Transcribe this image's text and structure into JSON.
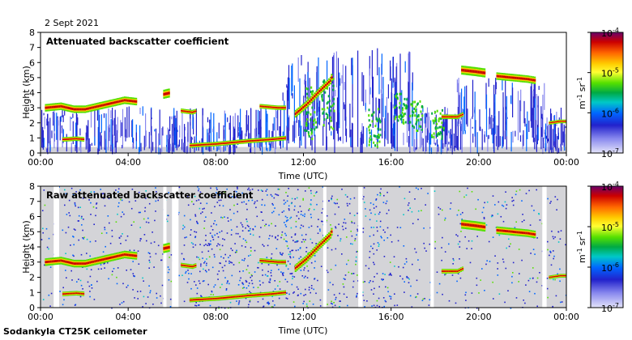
{
  "date": "2 Sept 2021",
  "footer": "Sodankyla CT25K ceilometer",
  "chart_data": [
    {
      "type": "heatmap",
      "title": "Attenuated backscatter coefficient",
      "xlabel": "Time (UTC)",
      "ylabel": "Height (km)",
      "xticks": [
        "00:00",
        "04:00",
        "08:00",
        "12:00",
        "16:00",
        "20:00",
        "00:00"
      ],
      "xlim_hours": [
        0,
        24
      ],
      "yticks": [
        "0",
        "1",
        "2",
        "3",
        "4",
        "5",
        "6",
        "7",
        "8"
      ],
      "ylim_km": [
        0,
        8
      ],
      "colorbar": {
        "scale": "log",
        "ticks": [
          {
            "base": "10",
            "exp": "-4"
          },
          {
            "base": "10",
            "exp": "-5"
          },
          {
            "base": "10",
            "exp": "-6"
          },
          {
            "base": "10",
            "exp": "-7"
          }
        ],
        "unit": {
          "m": "m",
          "m_exp": "-1",
          "sr": "sr",
          "sr_exp": "-1"
        },
        "colors": [
          "#6a006a",
          "#cc0000",
          "#ff6600",
          "#ffcc00",
          "#ffff33",
          "#55e000",
          "#00aa44",
          "#00c8c8",
          "#0066ff",
          "#2222cc",
          "#8888ee",
          "#d8d8f8"
        ]
      },
      "layers": [
        {
          "name": "cloud-top-lower",
          "points": [
            [
              0.2,
              3.0
            ],
            [
              0.9,
              3.1
            ],
            [
              1.5,
              2.9
            ],
            [
              2.0,
              2.9
            ],
            [
              2.6,
              3.1
            ],
            [
              3.2,
              3.3
            ],
            [
              3.8,
              3.5
            ],
            [
              4.4,
              3.4
            ]
          ],
          "thickness_km": 0.25,
          "value": "high"
        },
        {
          "name": "low-cloud-early",
          "points": [
            [
              1.0,
              0.9
            ],
            [
              1.6,
              0.95
            ],
            [
              2.0,
              0.9
            ]
          ],
          "thickness_km": 0.15,
          "value": "high"
        },
        {
          "name": "cloud-0530",
          "points": [
            [
              5.6,
              3.9
            ],
            [
              5.9,
              4.0
            ]
          ],
          "thickness_km": 0.3,
          "value": "high"
        },
        {
          "name": "cloud-0630",
          "points": [
            [
              6.4,
              2.8
            ],
            [
              6.9,
              2.7
            ],
            [
              7.1,
              2.8
            ]
          ],
          "thickness_km": 0.15,
          "value": "high"
        },
        {
          "name": "boundary-layer",
          "points": [
            [
              6.8,
              0.5
            ],
            [
              8.0,
              0.6
            ],
            [
              9.5,
              0.8
            ],
            [
              10.5,
              0.9
            ],
            [
              11.2,
              1.0
            ]
          ],
          "thickness_km": 0.15,
          "value": "high"
        },
        {
          "name": "cloud-1030",
          "points": [
            [
              10.0,
              3.1
            ],
            [
              10.8,
              3.0
            ],
            [
              11.2,
              3.0
            ]
          ],
          "thickness_km": 0.15,
          "value": "high"
        },
        {
          "name": "rising-cloud-12",
          "points": [
            [
              11.6,
              2.6
            ],
            [
              12.1,
              3.2
            ],
            [
              12.7,
              4.1
            ],
            [
              13.2,
              4.8
            ],
            [
              13.3,
              5.2
            ]
          ],
          "thickness_km": 0.25,
          "value": "high"
        },
        {
          "name": "cloud-1900",
          "points": [
            [
              18.3,
              2.4
            ],
            [
              19.0,
              2.4
            ],
            [
              19.3,
              2.6
            ]
          ],
          "thickness_km": 0.15,
          "value": "high"
        },
        {
          "name": "cloud-2000",
          "points": [
            [
              19.2,
              5.5
            ],
            [
              19.8,
              5.4
            ],
            [
              20.3,
              5.3
            ]
          ],
          "thickness_km": 0.3,
          "value": "high"
        },
        {
          "name": "cloud-2100",
          "points": [
            [
              20.8,
              5.1
            ],
            [
              21.5,
              5.0
            ],
            [
              22.2,
              4.9
            ],
            [
              22.6,
              4.8
            ]
          ],
          "thickness_km": 0.25,
          "value": "high"
        },
        {
          "name": "cloud-2330",
          "points": [
            [
              23.2,
              2.0
            ],
            [
              23.7,
              2.1
            ],
            [
              24.0,
              2.1
            ]
          ],
          "thickness_km": 0.12,
          "value": "high"
        }
      ]
    },
    {
      "type": "heatmap",
      "title": "Raw attenuated backscatter coefficient",
      "xlabel": "Time (UTC)",
      "ylabel": "Height (km)",
      "xticks": [
        "00:00",
        "04:00",
        "08:00",
        "12:00",
        "16:00",
        "20:00",
        "00:00"
      ],
      "xlim_hours": [
        0,
        24
      ],
      "yticks": [
        "0",
        "1",
        "2",
        "3",
        "4",
        "5",
        "6",
        "7",
        "8"
      ],
      "ylim_km": [
        0,
        8
      ],
      "colorbar": {
        "scale": "log",
        "ticks": [
          {
            "base": "10",
            "exp": "-4"
          },
          {
            "base": "10",
            "exp": "-5"
          },
          {
            "base": "10",
            "exp": "-6"
          },
          {
            "base": "10",
            "exp": "-7"
          }
        ],
        "unit": {
          "m": "m",
          "m_exp": "-1",
          "sr": "sr",
          "sr_exp": "-1"
        },
        "colors": [
          "#6a006a",
          "#cc0000",
          "#ff6600",
          "#ffcc00",
          "#ffff33",
          "#55e000",
          "#00aa44",
          "#00c8c8",
          "#0066ff",
          "#2222cc",
          "#8888ee",
          "#d8d8f8"
        ]
      },
      "noise_background": "light-grey with blue/green speckle"
    }
  ]
}
